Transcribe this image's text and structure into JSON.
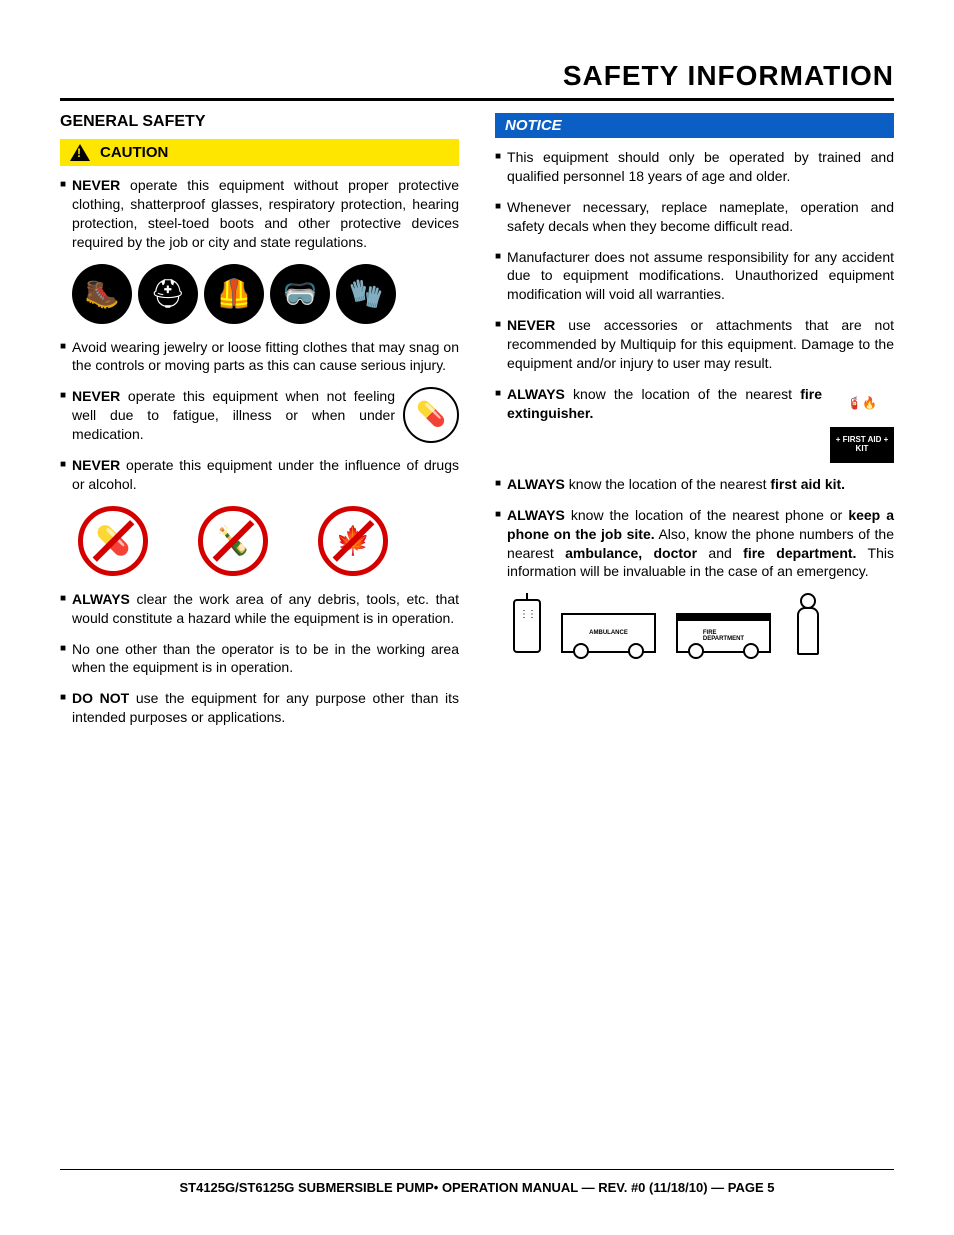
{
  "page_title": "SAFETY INFORMATION",
  "left": {
    "heading": "GENERAL SAFETY",
    "caution_label": "CAUTION",
    "items": [
      {
        "pre": "NEVER",
        "rest": " operate this equipment without proper protective clothing, shatterproof glasses, respiratory protection, hearing protection, steel-toed boots and other protective devices required by the job or city and state regulations."
      },
      {
        "pre": "",
        "rest": "Avoid wearing jewelry or loose fitting clothes that may snag on the controls or moving parts as this can cause serious injury."
      },
      {
        "pre": "NEVER",
        "rest": " operate this equipment when not feeling well due to fatigue, illness or when under medication.",
        "icon": "med"
      },
      {
        "pre": "NEVER",
        "rest": " operate this equipment under the influence of drugs or alcohol."
      },
      {
        "pre": "ALWAYS",
        "rest": " clear the work area of any debris, tools, etc. that would constitute a hazard while the equipment is in operation."
      },
      {
        "pre": "",
        "rest": "No one other than the operator is to be in the working area when the equipment is in operation."
      },
      {
        "pre": "DO NOT",
        "rest": " use the equipment for any purpose other than its intended purposes or applications."
      }
    ],
    "ppe_icons": [
      "boot",
      "hardhat",
      "coveralls",
      "goggles",
      "gloves"
    ],
    "prohibit_icons": [
      "pills",
      "bottle",
      "leaf"
    ]
  },
  "right": {
    "notice_label": "NOTICE",
    "items": [
      {
        "pre": "",
        "rest": "This equipment should only be operated by trained and qualified personnel 18 years of age and older."
      },
      {
        "pre": "",
        "rest": "Whenever necessary, replace nameplate, operation and safety decals when they become difficult read."
      },
      {
        "pre": "",
        "rest": "Manufacturer does not assume responsibility for any accident due to equipment modifications. Unauthorized equipment modification will void all warranties."
      },
      {
        "pre": "NEVER",
        "rest": " use accessories or attachments that are not recommended by Multiquip for this equipment. Damage to the equipment and/or injury to user may result."
      },
      {
        "pre": "ALWAYS",
        "rest": " know the location of the nearest ",
        "bold2": "fire extinguisher.",
        "icon": "ext"
      },
      {
        "pre": "ALWAYS",
        "rest": " know the location of the nearest ",
        "bold2": "first aid kit.",
        "icon": "aid"
      },
      {
        "pre": "ALWAYS",
        "html": " know the location of the nearest phone or <span class='b'>keep a phone on the job site.</span> Also, know the phone numbers of the nearest <span class='b'>ambulance, doctor</span> and <span class='b'>fire department.</span> This information will be invaluable in the case of an emergency."
      }
    ],
    "aid_text": "+ FIRST AID +\nKIT",
    "vehicles": [
      "AMBULANCE",
      "FIRE\nDEPARTMENT"
    ]
  },
  "footer": "ST4125G/ST6125G SUBMERSIBLE PUMP• OPERATION MANUAL — REV. #0 (11/18/10) — PAGE 5",
  "colors": {
    "caution_bg": "#ffe600",
    "notice_bg": "#0b5fc4",
    "prohibit_ring": "#d40000"
  }
}
